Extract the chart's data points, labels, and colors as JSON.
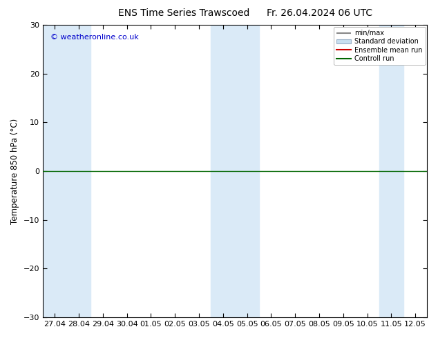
{
  "title_left": "ENS Time Series Trawscoed",
  "title_right": "Fr. 26.04.2024 06 UTC",
  "ylabel": "Temperature 850 hPa (°C)",
  "copyright": "© weatheronline.co.uk",
  "ylim": [
    -30,
    30
  ],
  "yticks": [
    -30,
    -20,
    -10,
    0,
    10,
    20,
    30
  ],
  "x_labels": [
    "27.04",
    "28.04",
    "29.04",
    "30.04",
    "01.05",
    "02.05",
    "03.05",
    "04.05",
    "05.05",
    "06.05",
    "07.05",
    "08.05",
    "09.05",
    "10.05",
    "11.05",
    "12.05"
  ],
  "n_ticks": 16,
  "blue_band_positions": [
    0,
    1,
    7,
    8,
    14
  ],
  "horizontal_line_y": 0,
  "horizontal_line_color": "#006600",
  "legend_items": [
    "min/max",
    "Standard deviation",
    "Ensemble mean run",
    "Controll run"
  ],
  "bg_color": "#ffffff",
  "plot_bg": "#ffffff",
  "band_color": "#daeaf7",
  "title_fontsize": 10,
  "tick_fontsize": 8,
  "ylabel_fontsize": 8.5,
  "copyright_color": "#0000cc"
}
